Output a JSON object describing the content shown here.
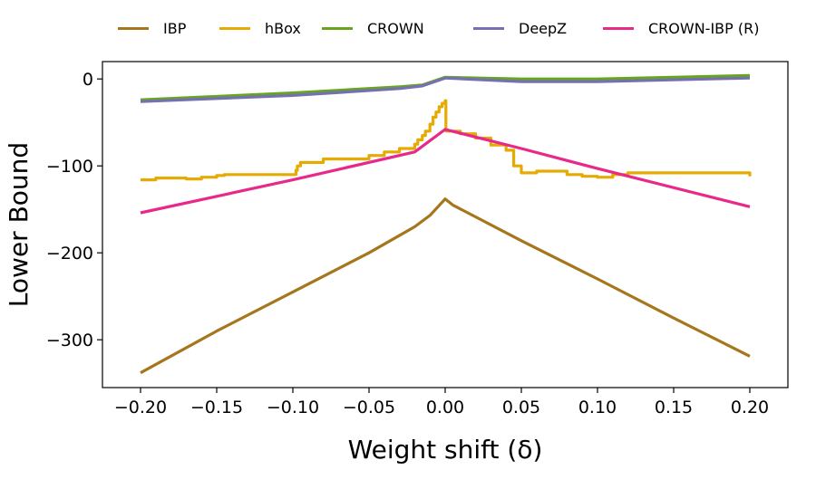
{
  "chart_data": {
    "type": "line",
    "title": "",
    "xlabel": "Weight shift (δ)",
    "ylabel": "Lower Bound",
    "xlim": [
      -0.225,
      0.225
    ],
    "ylim": [
      -355,
      20
    ],
    "xticks": [
      -0.2,
      -0.15,
      -0.1,
      -0.05,
      0.0,
      0.05,
      0.1,
      0.15,
      0.2
    ],
    "xtick_labels": [
      "−0.20",
      "−0.15",
      "−0.10",
      "−0.05",
      "0.00",
      "0.05",
      "0.10",
      "0.15",
      "0.20"
    ],
    "yticks": [
      0,
      -100,
      -200,
      -300
    ],
    "ytick_labels": [
      "0",
      "−100",
      "−200",
      "−300"
    ],
    "grid": false,
    "legend_position": "top-outside",
    "series": [
      {
        "name": "IBP",
        "color": "#a6761d",
        "step": false,
        "x": [
          -0.2,
          -0.15,
          -0.1,
          -0.05,
          -0.02,
          -0.01,
          0.0,
          0.005,
          0.05,
          0.1,
          0.15,
          0.2
        ],
        "y": [
          -338,
          -290,
          -245,
          -200,
          -170,
          -157,
          -138,
          -145,
          -186,
          -230,
          -275,
          -319
        ]
      },
      {
        "name": "hBox",
        "color": "#e6ab02",
        "step": true,
        "x": [
          -0.2,
          -0.19,
          -0.17,
          -0.16,
          -0.15,
          -0.145,
          -0.1,
          -0.098,
          -0.097,
          -0.095,
          -0.08,
          -0.05,
          -0.04,
          -0.03,
          -0.02,
          -0.018,
          -0.015,
          -0.013,
          -0.01,
          -0.008,
          -0.006,
          -0.004,
          -0.002,
          0.0,
          0.0005,
          0.01,
          0.02,
          0.03,
          0.04,
          0.045,
          0.05,
          0.06,
          0.08,
          0.09,
          0.1,
          0.11,
          0.12,
          0.2
        ],
        "y": [
          -116,
          -114,
          -115,
          -113,
          -111,
          -110,
          -110,
          -105,
          -100,
          -96,
          -92,
          -88,
          -84,
          -80,
          -75,
          -70,
          -65,
          -60,
          -52,
          -44,
          -38,
          -32,
          -28,
          -25,
          -60,
          -63,
          -68,
          -76,
          -82,
          -100,
          -108,
          -106,
          -110,
          -112,
          -113,
          -110,
          -108,
          -112
        ]
      },
      {
        "name": "CROWN",
        "color": "#66a61e",
        "step": false,
        "x": [
          -0.2,
          -0.1,
          -0.03,
          -0.015,
          0.0,
          0.05,
          0.1,
          0.2
        ],
        "y": [
          -24,
          -16,
          -9,
          -7,
          2,
          0,
          0,
          4
        ]
      },
      {
        "name": "DeepZ",
        "color": "#7570b3",
        "step": false,
        "x": [
          -0.2,
          -0.1,
          -0.03,
          -0.015,
          0.0,
          0.05,
          0.1,
          0.2
        ],
        "y": [
          -26,
          -19,
          -11,
          -8,
          1,
          -3,
          -3,
          1
        ]
      },
      {
        "name": "CROWN-IBP (R)",
        "color": "#e7298a",
        "step": false,
        "x": [
          -0.2,
          -0.1,
          -0.02,
          0.0,
          0.05,
          0.1,
          0.2
        ],
        "y": [
          -154,
          -116,
          -84,
          -58,
          -80,
          -103,
          -147
        ]
      }
    ]
  }
}
